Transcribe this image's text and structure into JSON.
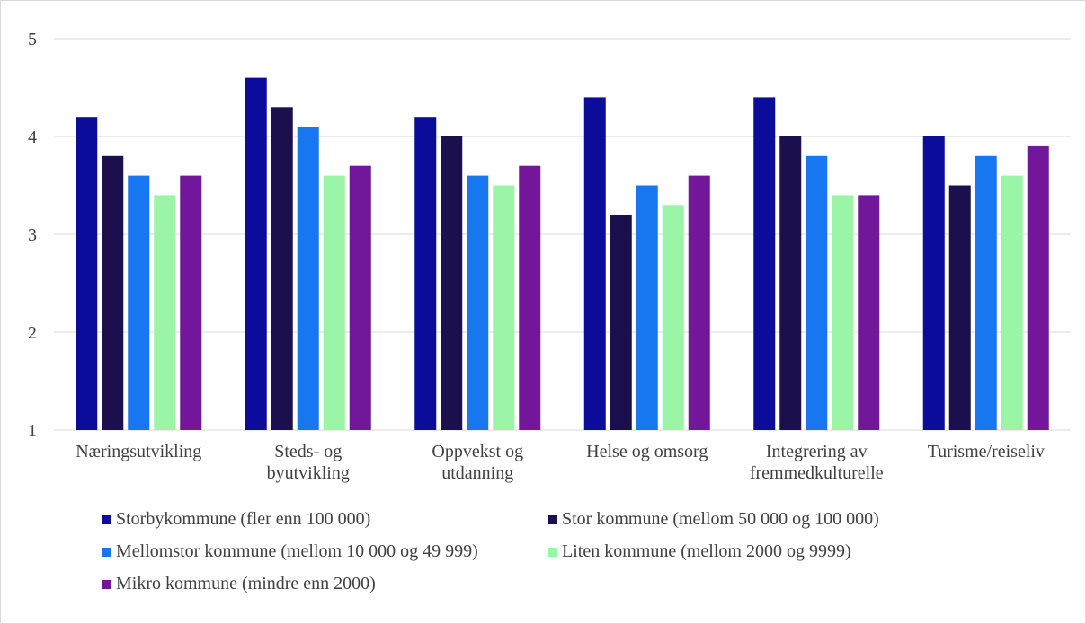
{
  "chart_data": {
    "type": "bar",
    "categories": [
      [
        "Næringsutvikling"
      ],
      [
        "Steds- og",
        "byutvikling"
      ],
      [
        "Oppvekst og",
        "utdanning"
      ],
      [
        "Helse og omsorg"
      ],
      [
        "Integrering av",
        "fremmedkulturelle"
      ],
      [
        "Turisme/reiseliv"
      ]
    ],
    "series": [
      {
        "name": "Storbykommune (fler enn 100 000)",
        "color": "#0b0d9a",
        "values": [
          4.2,
          4.6,
          4.2,
          4.4,
          4.4,
          4.0
        ]
      },
      {
        "name": "Stor kommune (mellom 50 000 og 100 000)",
        "color": "#1c0f4d",
        "values": [
          3.8,
          4.3,
          4.0,
          3.2,
          4.0,
          3.5
        ]
      },
      {
        "name": "Mellomstor kommune (mellom 10 000 og 49 999)",
        "color": "#1677f0",
        "values": [
          3.6,
          4.1,
          3.6,
          3.5,
          3.8,
          3.8
        ]
      },
      {
        "name": "Liten kommune (mellom 2000 og 9999)",
        "color": "#9af5a6",
        "values": [
          3.4,
          3.6,
          3.5,
          3.3,
          3.4,
          3.6
        ]
      },
      {
        "name": "Mikro kommune (mindre enn 2000)",
        "color": "#72179a",
        "values": [
          3.6,
          3.7,
          3.7,
          3.6,
          3.4,
          3.9
        ]
      }
    ],
    "ylim": [
      1,
      5
    ],
    "yticks": [
      1,
      2,
      3,
      4,
      5
    ],
    "grid": true,
    "legend_position": "bottom"
  }
}
